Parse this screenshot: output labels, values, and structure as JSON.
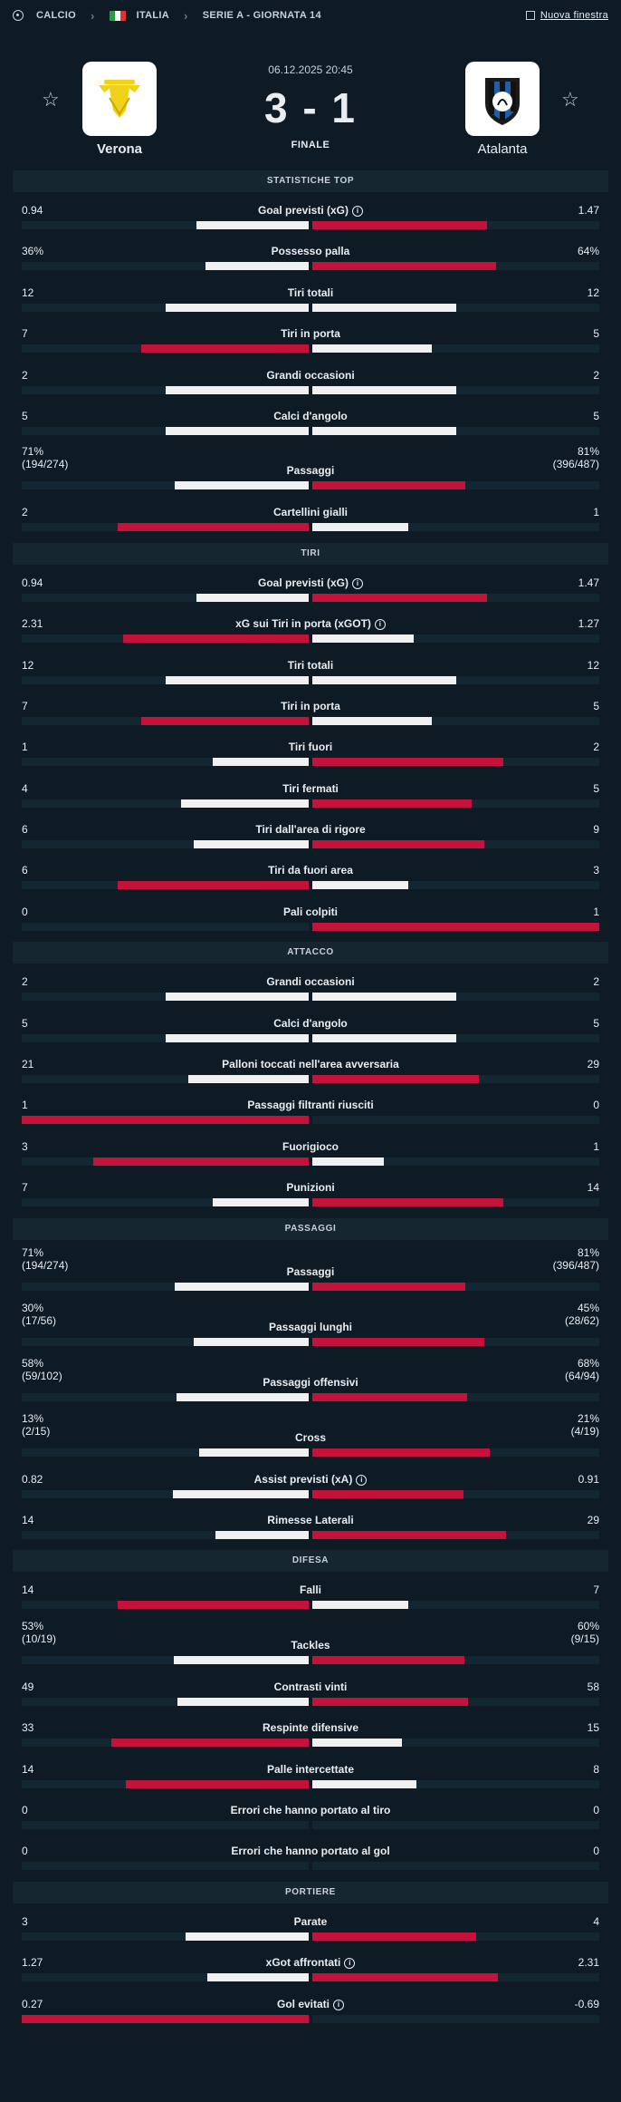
{
  "breadcrumb": {
    "sport": "CALCIO",
    "country": "ITALIA",
    "league": "SERIE A - GIORNATA 14",
    "new_window": "Nuova finestra"
  },
  "match": {
    "datetime": "06.12.2025 20:45",
    "score": "3 - 1",
    "status": "FINALE",
    "home": {
      "name": "Verona"
    },
    "away": {
      "name": "Atalanta"
    }
  },
  "colors": {
    "winner": "#c4123b",
    "other": "#f0f0f0",
    "background": "#0e1a24"
  },
  "sections": [
    {
      "title": "STATISTICHE TOP",
      "rows": [
        {
          "label": "Goal previsti (xG)",
          "info": true,
          "home": "0.94",
          "away": "1.47",
          "hv": 0.94,
          "av": 1.47
        },
        {
          "label": "Possesso palla",
          "home": "36%",
          "away": "64%",
          "hv": 36,
          "av": 64
        },
        {
          "label": "Tiri totali",
          "home": "12",
          "away": "12",
          "hv": 12,
          "av": 12
        },
        {
          "label": "Tiri in porta",
          "home": "7",
          "away": "5",
          "hv": 7,
          "av": 5
        },
        {
          "label": "Grandi occasioni",
          "home": "2",
          "away": "2",
          "hv": 2,
          "av": 2
        },
        {
          "label": "Calci d'angolo",
          "home": "5",
          "away": "5",
          "hv": 5,
          "av": 5
        },
        {
          "label": "Passaggi",
          "home": "71%",
          "home_sub": "(194/274)",
          "away": "81%",
          "away_sub": "(396/487)",
          "hv": 71,
          "av": 81
        },
        {
          "label": "Cartellini gialli",
          "home": "2",
          "away": "1",
          "hv": 2,
          "av": 1
        }
      ]
    },
    {
      "title": "TIRI",
      "rows": [
        {
          "label": "Goal previsti (xG)",
          "info": true,
          "home": "0.94",
          "away": "1.47",
          "hv": 0.94,
          "av": 1.47
        },
        {
          "label": "xG sui Tiri in porta (xGOT)",
          "info": true,
          "home": "2.31",
          "away": "1.27",
          "hv": 2.31,
          "av": 1.27
        },
        {
          "label": "Tiri totali",
          "home": "12",
          "away": "12",
          "hv": 12,
          "av": 12
        },
        {
          "label": "Tiri in porta",
          "home": "7",
          "away": "5",
          "hv": 7,
          "av": 5
        },
        {
          "label": "Tiri fuori",
          "home": "1",
          "away": "2",
          "hv": 1,
          "av": 2
        },
        {
          "label": "Tiri fermati",
          "home": "4",
          "away": "5",
          "hv": 4,
          "av": 5
        },
        {
          "label": "Tiri dall'area di rigore",
          "home": "6",
          "away": "9",
          "hv": 6,
          "av": 9
        },
        {
          "label": "Tiri da fuori area",
          "home": "6",
          "away": "3",
          "hv": 6,
          "av": 3
        },
        {
          "label": "Pali colpiti",
          "home": "0",
          "away": "1",
          "hv": 0,
          "av": 1
        }
      ]
    },
    {
      "title": "ATTACCO",
      "rows": [
        {
          "label": "Grandi occasioni",
          "home": "2",
          "away": "2",
          "hv": 2,
          "av": 2
        },
        {
          "label": "Calci d'angolo",
          "home": "5",
          "away": "5",
          "hv": 5,
          "av": 5
        },
        {
          "label": "Palloni toccati nell'area avversaria",
          "home": "21",
          "away": "29",
          "hv": 21,
          "av": 29
        },
        {
          "label": "Passaggi filtranti riusciti",
          "home": "1",
          "away": "0",
          "hv": 1,
          "av": 0
        },
        {
          "label": "Fuorigioco",
          "home": "3",
          "away": "1",
          "hv": 3,
          "av": 1
        },
        {
          "label": "Punizioni",
          "home": "7",
          "away": "14",
          "hv": 7,
          "av": 14
        }
      ]
    },
    {
      "title": "PASSAGGI",
      "rows": [
        {
          "label": "Passaggi",
          "home": "71%",
          "home_sub": "(194/274)",
          "away": "81%",
          "away_sub": "(396/487)",
          "hv": 71,
          "av": 81
        },
        {
          "label": "Passaggi lunghi",
          "home": "30%",
          "home_sub": "(17/56)",
          "away": "45%",
          "away_sub": "(28/62)",
          "hv": 30,
          "av": 45
        },
        {
          "label": "Passaggi offensivi",
          "home": "58%",
          "home_sub": "(59/102)",
          "away": "68%",
          "away_sub": "(64/94)",
          "hv": 58,
          "av": 68
        },
        {
          "label": "Cross",
          "home": "13%",
          "home_sub": "(2/15)",
          "away": "21%",
          "away_sub": "(4/19)",
          "hv": 13,
          "av": 21
        },
        {
          "label": "Assist previsti (xA)",
          "info": true,
          "home": "0.82",
          "away": "0.91",
          "hv": 0.82,
          "av": 0.91
        },
        {
          "label": "Rimesse Laterali",
          "home": "14",
          "away": "29",
          "hv": 14,
          "av": 29
        }
      ]
    },
    {
      "title": "DIFESA",
      "rows": [
        {
          "label": "Falli",
          "home": "14",
          "away": "7",
          "hv": 14,
          "av": 7
        },
        {
          "label": "Tackles",
          "home": "53%",
          "home_sub": "(10/19)",
          "away": "60%",
          "away_sub": "(9/15)",
          "hv": 53,
          "av": 60
        },
        {
          "label": "Contrasti vinti",
          "home": "49",
          "away": "58",
          "hv": 49,
          "av": 58
        },
        {
          "label": "Respinte difensive",
          "home": "33",
          "away": "15",
          "hv": 33,
          "av": 15
        },
        {
          "label": "Palle intercettate",
          "home": "14",
          "away": "8",
          "hv": 14,
          "av": 8
        },
        {
          "label": "Errori che hanno portato al tiro",
          "home": "0",
          "away": "0",
          "hv": 0,
          "av": 0
        },
        {
          "label": "Errori che hanno portato al gol",
          "home": "0",
          "away": "0",
          "hv": 0,
          "av": 0
        }
      ]
    },
    {
      "title": "PORTIERE",
      "rows": [
        {
          "label": "Parate",
          "home": "3",
          "away": "4",
          "hv": 3,
          "av": 4
        },
        {
          "label": "xGot affrontati",
          "info": true,
          "home": "1.27",
          "away": "2.31",
          "hv": 1.27,
          "av": 2.31
        },
        {
          "label": "Gol evitati",
          "info": true,
          "home": "0.27",
          "away": "-0.69",
          "hv": 0.27,
          "av": -0.69
        }
      ]
    }
  ]
}
